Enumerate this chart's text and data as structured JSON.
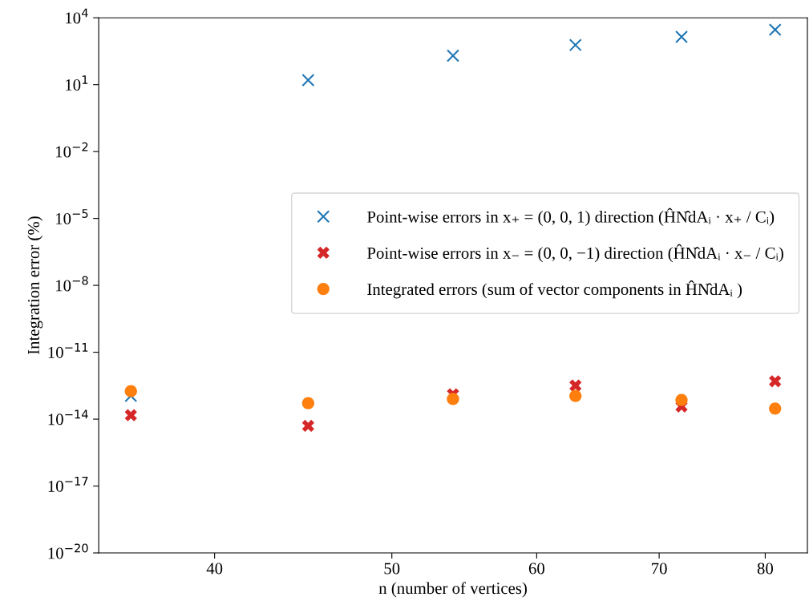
{
  "chart_data": {
    "type": "scatter",
    "xlabel": "n (number of vertices)",
    "ylabel": "Integration error (%)",
    "x": [
      36,
      45,
      54,
      63,
      72,
      81
    ],
    "series": [
      {
        "name": "Point-wise errors in x₊ = (0, 0, 1) direction (ĤN̂dAᵢ · x₊ / Cᵢ)",
        "color": "#1f77b4",
        "marker": "cross",
        "values": [
          1.1e-13,
          16,
          200,
          600,
          1400,
          2900
        ]
      },
      {
        "name": "Point-wise errors in x₋ = (0, 0, −1) direction (ĤN̂dAᵢ · x₋ / Cᵢ)",
        "color": "#d62728",
        "marker": "cross_filled",
        "values": [
          1.5e-14,
          5e-15,
          1.3e-13,
          3.2e-13,
          3.7e-14,
          5e-13
        ]
      },
      {
        "name": "Integrated errors (sum of vector components in ĤN̂dAᵢ )",
        "color": "#ff7f0e",
        "marker": "circle",
        "values": [
          1.8e-13,
          5.2e-14,
          8e-14,
          1.1e-13,
          7.2e-14,
          3e-14
        ]
      }
    ],
    "log": "xy",
    "xlim": [
      34.57,
      84.36
    ],
    "xticks": [
      40,
      50,
      60,
      70,
      80
    ],
    "ylim": [
      1e-20,
      10000.0
    ],
    "yticks": [
      {
        "value": 1e-20,
        "label": "10$^{−20}$"
      },
      {
        "value": 1e-17,
        "label": "10$^{−17}$"
      },
      {
        "value": 1e-14,
        "label": "10$^{−14}$"
      },
      {
        "value": 1e-11,
        "label": "10$^{−11}$"
      },
      {
        "value": 1e-08,
        "label": "10$^{−8}$"
      },
      {
        "value": 1e-05,
        "label": "10$^{−5}$"
      },
      {
        "value": 0.01,
        "label": "10$^{−2}$"
      },
      {
        "value": 10,
        "label": "10$^{1}$"
      },
      {
        "value": 10000,
        "label": "10$^{4}$"
      }
    ],
    "grid": false,
    "legend": "right"
  }
}
